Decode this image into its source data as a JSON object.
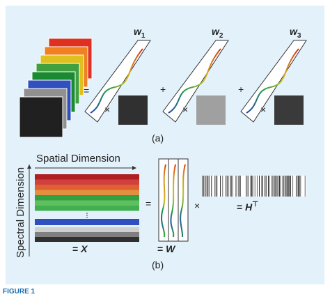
{
  "panel_a": {
    "weights": [
      {
        "symbol": "w",
        "index": "1"
      },
      {
        "symbol": "w",
        "index": "2"
      },
      {
        "symbol": "w",
        "index": "3"
      }
    ],
    "equals": "=",
    "plus": "+",
    "times": "×",
    "caption": "(a)"
  },
  "panel_b": {
    "spatial_label": "Spatial Dimension",
    "spectral_label": "Spectral Dimension",
    "x_label": {
      "prefix": "= ",
      "symbol": "X"
    },
    "equals": "=",
    "times": "×",
    "w_label": {
      "prefix": "= ",
      "symbol": "W"
    },
    "h_label": {
      "prefix": "= ",
      "symbol": "H",
      "superscript": "⊤"
    },
    "caption": "(b)"
  },
  "figure_caption": "FIGURE 1"
}
